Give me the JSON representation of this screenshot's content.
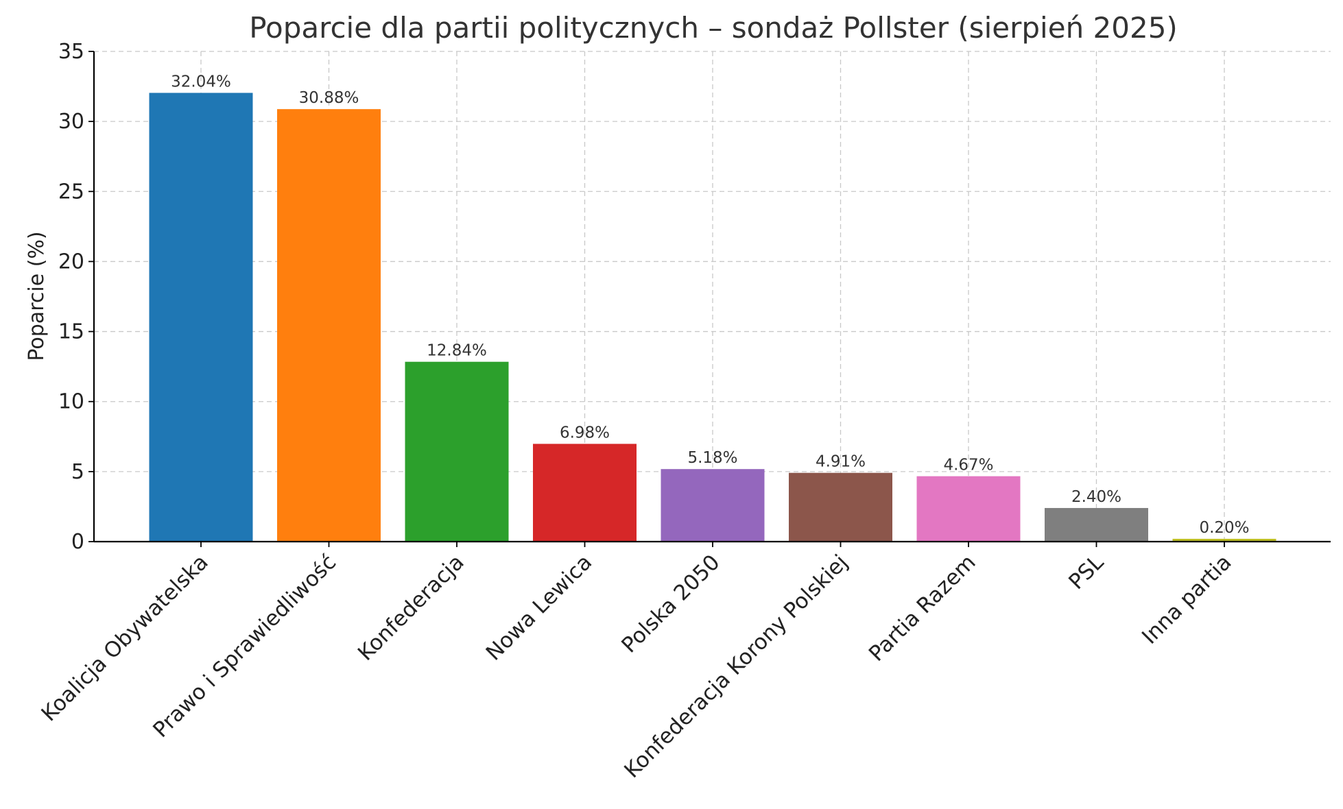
{
  "chart_data": {
    "type": "bar",
    "title": "Poparcie dla partii politycznych – sondaż Pollster (sierpień 2025)",
    "xlabel": "",
    "ylabel": "Poparcie (%)",
    "ylim": [
      0,
      35
    ],
    "yticks": [
      "0",
      "5",
      "10",
      "15",
      "20",
      "25",
      "30",
      "35"
    ],
    "grid": true,
    "categories": [
      "Koalicja Obywatelska",
      "Prawo i Sprawiedliwość",
      "Konfederacja",
      "Nowa Lewica",
      "Polska 2050",
      "Konfederacja Korony Polskiej",
      "Partia Razem",
      "PSL",
      "Inna partia"
    ],
    "values": [
      32.04,
      30.88,
      12.84,
      6.98,
      5.18,
      4.91,
      4.67,
      2.4,
      0.2
    ],
    "data_labels": [
      "32.04%",
      "30.88%",
      "12.84%",
      "6.98%",
      "5.18%",
      "4.91%",
      "4.67%",
      "2.40%",
      "0.20%"
    ],
    "colors": [
      "#1f77b4",
      "#ff7f0e",
      "#2ca02c",
      "#d62728",
      "#9467bd",
      "#8c564b",
      "#e377c2",
      "#7f7f7f",
      "#bcbd22"
    ]
  }
}
